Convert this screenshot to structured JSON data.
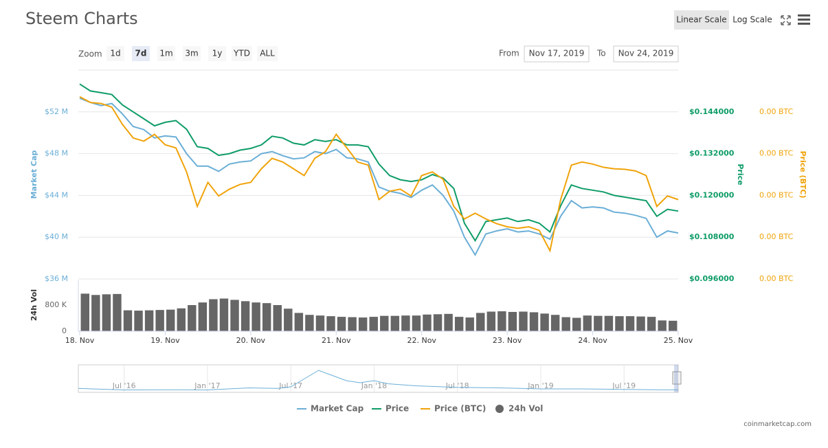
{
  "header": {
    "title": "Steem Charts",
    "scale_buttons": [
      "Linear Scale",
      "Log Scale"
    ]
  },
  "toolbar": {
    "zoom_label": "Zoom",
    "zoom_buttons": [
      "1d",
      "7d",
      "1m",
      "3m",
      "1y",
      "YTD",
      "ALL"
    ],
    "from_label": "From",
    "from_value": "Nov 17, 2019",
    "to_label": "To",
    "to_value": "Nov 24, 2019"
  },
  "chart_data": {
    "type": "line",
    "y_label": "Market Cap",
    "y2_label": "Price",
    "y3_label": "Price (BTC)",
    "vol_label": "24h Vol",
    "xlim": [
      0,
      7
    ],
    "xticks": [
      {
        "value": 0,
        "label": "18. Nov"
      },
      {
        "value": 1,
        "label": "19. Nov"
      },
      {
        "value": 2,
        "label": "20. Nov"
      },
      {
        "value": 3,
        "label": "21. Nov"
      },
      {
        "value": 4,
        "label": "22. Nov"
      },
      {
        "value": 5,
        "label": "23. Nov"
      },
      {
        "value": 6,
        "label": "24. Nov"
      },
      {
        "value": 7,
        "label": "25. Nov"
      }
    ],
    "ylim": [
      36000000,
      56000000
    ],
    "yticks": [
      {
        "value": 52000000,
        "label": "$52 M"
      },
      {
        "value": 48000000,
        "label": "$48 M"
      },
      {
        "value": 44000000,
        "label": "$44 M"
      },
      {
        "value": 40000000,
        "label": "$40 M"
      },
      {
        "value": 36000000,
        "label": "$36 M"
      }
    ],
    "y2lim": [
      0.096,
      0.156
    ],
    "y2ticks": [
      {
        "value": 0.144,
        "label": "$0.144000"
      },
      {
        "value": 0.132,
        "label": "$0.132000"
      },
      {
        "value": 0.12,
        "label": "$0.120000"
      },
      {
        "value": 0.108,
        "label": "$0.108000"
      },
      {
        "value": 0.096,
        "label": "$0.096000"
      }
    ],
    "y3lim": [
      1.32e-05,
      1.72e-05
    ],
    "y3ticks": [
      {
        "value": 1.64e-05,
        "label": "0.00 BTC"
      },
      {
        "value": 1.56e-05,
        "label": "0.00 BTC"
      },
      {
        "value": 1.48e-05,
        "label": "0.00 BTC"
      },
      {
        "value": 1.4e-05,
        "label": "0.00 BTC"
      },
      {
        "value": 1.32e-05,
        "label": "0.00 BTC"
      }
    ],
    "vlim": [
      0,
      1600000
    ],
    "vticks": [
      {
        "value": 800000,
        "label": "800 K"
      },
      0
    ],
    "grid": true,
    "x": [
      0,
      0.125,
      0.25,
      0.375,
      0.5,
      0.625,
      0.75,
      0.875,
      1,
      1.125,
      1.25,
      1.375,
      1.5,
      1.625,
      1.75,
      1.875,
      2,
      2.125,
      2.25,
      2.375,
      2.5,
      2.625,
      2.75,
      2.875,
      3,
      3.125,
      3.25,
      3.375,
      3.5,
      3.625,
      3.75,
      3.875,
      4,
      4.125,
      4.25,
      4.375,
      4.5,
      4.625,
      4.75,
      4.875,
      5,
      5.125,
      5.25,
      5.375,
      5.5,
      5.625,
      5.75,
      5.875,
      6,
      6.125,
      6.25,
      6.375,
      6.5,
      6.625,
      6.75,
      6.875,
      7
    ],
    "series": [
      {
        "name": "Market Cap",
        "color": "#6aaed6",
        "axis": "y",
        "values": [
          53300000,
          52900000,
          52600000,
          52800000,
          51800000,
          50600000,
          50300000,
          49500000,
          49700000,
          49600000,
          48000000,
          46800000,
          46800000,
          46300000,
          47000000,
          47200000,
          47300000,
          48000000,
          48200000,
          47800000,
          47500000,
          47600000,
          48200000,
          48000000,
          48400000,
          47600000,
          47500000,
          47200000,
          44800000,
          44400000,
          44200000,
          43800000,
          44500000,
          45000000,
          44000000,
          42500000,
          40000000,
          38300000,
          40300000,
          40600000,
          40800000,
          40500000,
          40600000,
          40300000,
          39800000,
          42000000,
          43500000,
          42800000,
          42900000,
          42800000,
          42400000,
          42300000,
          42100000,
          41800000,
          40000000,
          40600000,
          40400000
        ]
      },
      {
        "name": "Price",
        "color": "#0e9c67",
        "axis": "y2",
        "values": [
          0.152,
          0.15,
          0.1495,
          0.149,
          0.146,
          0.144,
          0.142,
          0.14,
          0.141,
          0.1415,
          0.139,
          0.134,
          0.1335,
          0.1315,
          0.132,
          0.133,
          0.1335,
          0.1345,
          0.137,
          0.1365,
          0.135,
          0.1345,
          0.136,
          0.1355,
          0.136,
          0.1345,
          0.1345,
          0.134,
          0.129,
          0.1257,
          0.1245,
          0.124,
          0.1245,
          0.126,
          0.125,
          0.122,
          0.112,
          0.107,
          0.1125,
          0.113,
          0.1135,
          0.1125,
          0.113,
          0.112,
          0.1095,
          0.117,
          0.123,
          0.122,
          0.1215,
          0.121,
          0.12,
          0.1195,
          0.119,
          0.1185,
          0.114,
          0.116,
          0.1155
        ]
      },
      {
        "name": "Price (BTC)",
        "color": "#f0a30a",
        "axis": "y3",
        "values": [
          1.669e-05,
          1.658e-05,
          1.656e-05,
          1.649e-05,
          1.616e-05,
          1.59e-05,
          1.584e-05,
          1.597e-05,
          1.577e-05,
          1.571e-05,
          1.525e-05,
          1.459e-05,
          1.505e-05,
          1.479e-05,
          1.492e-05,
          1.501e-05,
          1.505e-05,
          1.531e-05,
          1.551e-05,
          1.544e-05,
          1.531e-05,
          1.518e-05,
          1.551e-05,
          1.564e-05,
          1.597e-05,
          1.571e-05,
          1.544e-05,
          1.538e-05,
          1.472e-05,
          1.488e-05,
          1.492e-05,
          1.479e-05,
          1.518e-05,
          1.525e-05,
          1.511e-05,
          1.459e-05,
          1.435e-05,
          1.446e-05,
          1.435e-05,
          1.426e-05,
          1.42e-05,
          1.417e-05,
          1.42e-05,
          1.413e-05,
          1.374e-05,
          1.472e-05,
          1.538e-05,
          1.544e-05,
          1.54e-05,
          1.534e-05,
          1.531e-05,
          1.53e-05,
          1.527e-05,
          1.518e-05,
          1.459e-05,
          1.479e-05,
          1.472e-05
        ]
      }
    ],
    "volume": {
      "name": "24h Vol",
      "color": "#666666",
      "x": [
        0.0625,
        0.1875,
        0.3125,
        0.4375,
        0.5625,
        0.6875,
        0.8125,
        0.9375,
        1.0625,
        1.1875,
        1.3125,
        1.4375,
        1.5625,
        1.6875,
        1.8125,
        1.9375,
        2.0625,
        2.1875,
        2.3125,
        2.4375,
        2.5625,
        2.6875,
        2.8125,
        2.9375,
        3.0625,
        3.1875,
        3.3125,
        3.4375,
        3.5625,
        3.6875,
        3.8125,
        3.9375,
        4.0625,
        4.1875,
        4.3125,
        4.4375,
        4.5625,
        4.6875,
        4.8125,
        4.9375,
        5.0625,
        5.1875,
        5.3125,
        5.4375,
        5.5625,
        5.6875,
        5.8125,
        5.9375,
        6.0625,
        6.1875,
        6.3125,
        6.4375,
        6.5625,
        6.6875,
        6.8125,
        6.9375
      ],
      "values": [
        1150000,
        1110000,
        1130000,
        1140000,
        640000,
        630000,
        640000,
        650000,
        660000,
        700000,
        800000,
        880000,
        980000,
        1000000,
        960000,
        920000,
        880000,
        860000,
        800000,
        690000,
        560000,
        500000,
        480000,
        460000,
        440000,
        430000,
        420000,
        440000,
        470000,
        470000,
        480000,
        480000,
        510000,
        520000,
        530000,
        440000,
        420000,
        560000,
        600000,
        610000,
        590000,
        600000,
        580000,
        540000,
        500000,
        430000,
        410000,
        480000,
        470000,
        470000,
        460000,
        460000,
        450000,
        440000,
        330000,
        320000
      ]
    },
    "navigator": {
      "color": "#6aaed6",
      "xlim": [
        -3.3,
        39.9
      ],
      "ylim": [
        0,
        2400000000
      ],
      "xticks": [
        {
          "value": 0,
          "label": "Jul '16"
        },
        {
          "value": 6,
          "label": "Jan '17"
        },
        {
          "value": 12,
          "label": "Jul '17"
        },
        {
          "value": 18,
          "label": "Jan '18"
        },
        {
          "value": 24,
          "label": "Jul '18"
        },
        {
          "value": 30,
          "label": "Jan '19"
        },
        {
          "value": 36,
          "label": "Jul '19"
        }
      ],
      "x": [
        -3.3,
        0,
        3,
        6,
        9,
        11,
        12,
        13,
        14,
        15,
        16,
        17,
        18,
        19,
        21,
        24,
        27,
        30,
        33,
        36,
        39,
        39.9
      ],
      "values": [
        250000000,
        100000000,
        120000000,
        100000000,
        300000000,
        250000000,
        400000000,
        1200000000,
        2000000000,
        1500000000,
        1000000000,
        800000000,
        1000000000,
        700000000,
        500000000,
        350000000,
        300000000,
        200000000,
        200000000,
        150000000,
        110000000,
        105000000
      ]
    }
  },
  "credit": "coinmarketcap.com"
}
